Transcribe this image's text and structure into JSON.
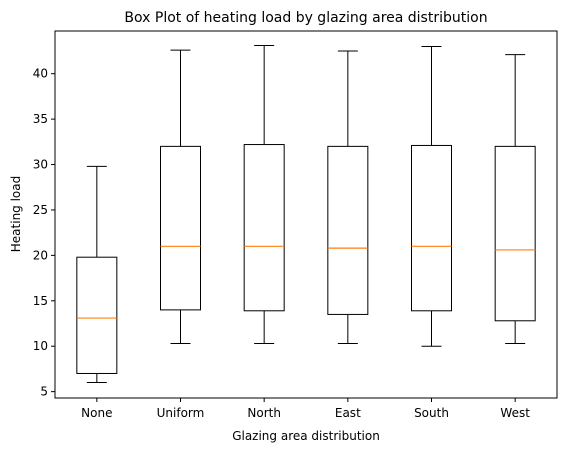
{
  "chart_data": {
    "type": "box",
    "title": "Box Plot of heating load by glazing area distribution",
    "xlabel": "Glazing area distribution",
    "ylabel": "Heating load",
    "ylim": [
      4.3,
      44.7
    ],
    "yticks": [
      5,
      10,
      15,
      20,
      25,
      30,
      35,
      40
    ],
    "categories": [
      "None",
      "Uniform",
      "North",
      "East",
      "South",
      "West"
    ],
    "boxes": [
      {
        "whisker_low": 6.0,
        "q1": 7.0,
        "median": 13.1,
        "q3": 19.8,
        "whisker_high": 29.8
      },
      {
        "whisker_low": 10.3,
        "q1": 14.0,
        "median": 21.0,
        "q3": 32.0,
        "whisker_high": 42.6
      },
      {
        "whisker_low": 10.3,
        "q1": 13.9,
        "median": 21.0,
        "q3": 32.2,
        "whisker_high": 43.1
      },
      {
        "whisker_low": 10.3,
        "q1": 13.5,
        "median": 20.8,
        "q3": 32.0,
        "whisker_high": 42.5
      },
      {
        "whisker_low": 10.0,
        "q1": 13.9,
        "median": 21.0,
        "q3": 32.1,
        "whisker_high": 43.0
      },
      {
        "whisker_low": 10.3,
        "q1": 12.8,
        "median": 20.6,
        "q3": 32.0,
        "whisker_high": 42.1
      }
    ],
    "colors": {
      "box": "#000000",
      "median": "#ff7f0e",
      "background": "#ffffff"
    },
    "grid": false,
    "legend": "none"
  }
}
